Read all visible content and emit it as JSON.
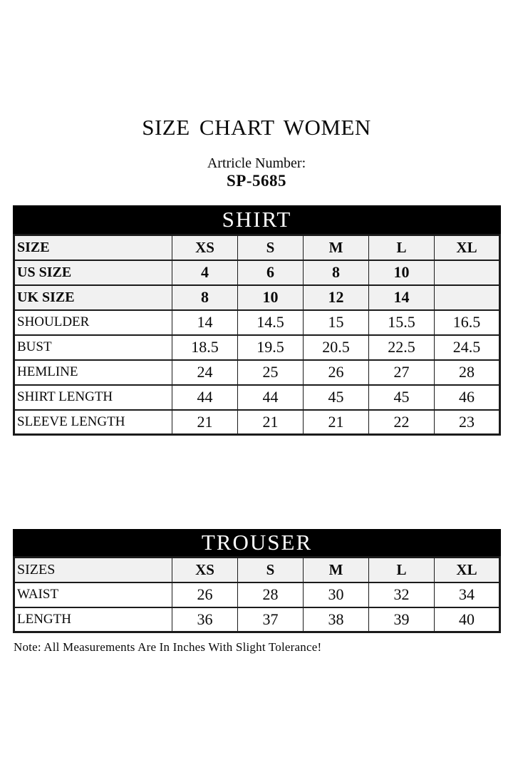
{
  "page": {
    "title": "SIZE CHART WOMEN",
    "article_label": "Artricle Number:",
    "article_number": "SP-5685",
    "note": "Note: All Measurements Are In Inches With Slight Tolerance!"
  },
  "colors": {
    "band_bg": "#000000",
    "band_text": "#ffffff",
    "shaded_row_bg": "#f1f1f1",
    "plain_row_bg": "#ffffff",
    "border": "#1b1b1b"
  },
  "shirt_table": {
    "title": "SHIRT",
    "header": {
      "label": "SIZE",
      "label_bold": true,
      "sizes": [
        "XS",
        "S",
        "M",
        "L",
        "XL"
      ]
    },
    "rows": [
      {
        "label": "US SIZE",
        "values": [
          "4",
          "6",
          "8",
          "10",
          ""
        ],
        "bold": true,
        "shaded": true
      },
      {
        "label": "UK SIZE",
        "values": [
          "8",
          "10",
          "12",
          "14",
          ""
        ],
        "bold": true,
        "shaded": true
      },
      {
        "label": "SHOULDER",
        "values": [
          "14",
          "14.5",
          "15",
          "15.5",
          "16.5"
        ],
        "bold": false,
        "shaded": false
      },
      {
        "label": "BUST",
        "values": [
          "18.5",
          "19.5",
          "20.5",
          "22.5",
          "24.5"
        ],
        "bold": false,
        "shaded": false
      },
      {
        "label": "HEMLINE",
        "values": [
          "24",
          "25",
          "26",
          "27",
          "28"
        ],
        "bold": false,
        "shaded": false
      },
      {
        "label": "SHIRT LENGTH",
        "values": [
          "44",
          "44",
          "45",
          "45",
          "46"
        ],
        "bold": false,
        "shaded": false
      },
      {
        "label": "SLEEVE LENGTH",
        "values": [
          "21",
          "21",
          "21",
          "22",
          "23"
        ],
        "bold": false,
        "shaded": false
      }
    ]
  },
  "trouser_table": {
    "title": "TROUSER",
    "header": {
      "label": "SIZES",
      "label_bold": false,
      "sizes": [
        "XS",
        "S",
        "M",
        "L",
        "XL"
      ]
    },
    "rows": [
      {
        "label": "WAIST",
        "values": [
          "26",
          "28",
          "30",
          "32",
          "34"
        ],
        "bold": false,
        "shaded": false
      },
      {
        "label": "LENGTH",
        "values": [
          "36",
          "37",
          "38",
          "39",
          "40"
        ],
        "bold": false,
        "shaded": false
      }
    ]
  }
}
